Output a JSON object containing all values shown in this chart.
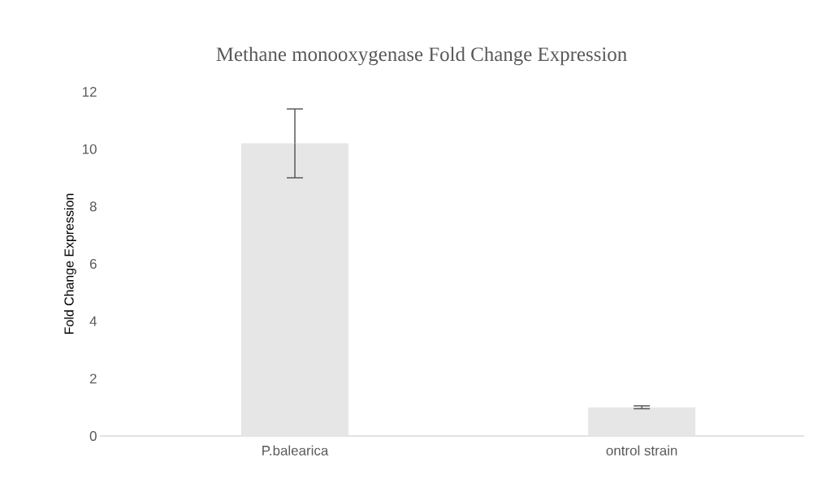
{
  "chart_data": {
    "type": "bar",
    "title": "Methane monooxygenase  Fold Change Expression",
    "ylabel": "Fold Change Expression",
    "categories": [
      "P.balearica",
      "ontrol strain"
    ],
    "values": [
      10.2,
      1.0
    ],
    "errors": [
      [
        9.0,
        11.4
      ],
      0.05
    ],
    "color": "#e6e6e6",
    "ylim": [
      0,
      12
    ],
    "yticks": [
      0,
      2,
      4,
      6,
      8,
      10,
      12
    ]
  }
}
